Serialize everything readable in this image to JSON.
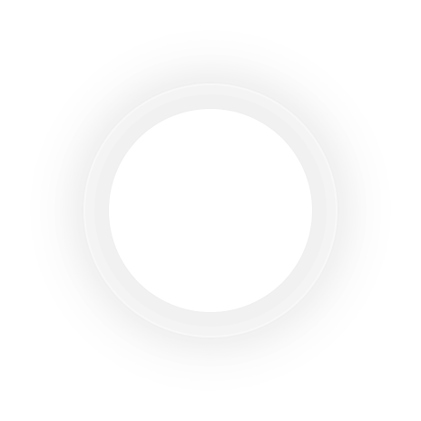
{
  "control": {
    "type": "circular-button",
    "colors": {
      "background": "#ffffff",
      "ring": "#f4f4f4",
      "ring_inner": "#f1f1f1",
      "face": "#ffffff"
    }
  }
}
